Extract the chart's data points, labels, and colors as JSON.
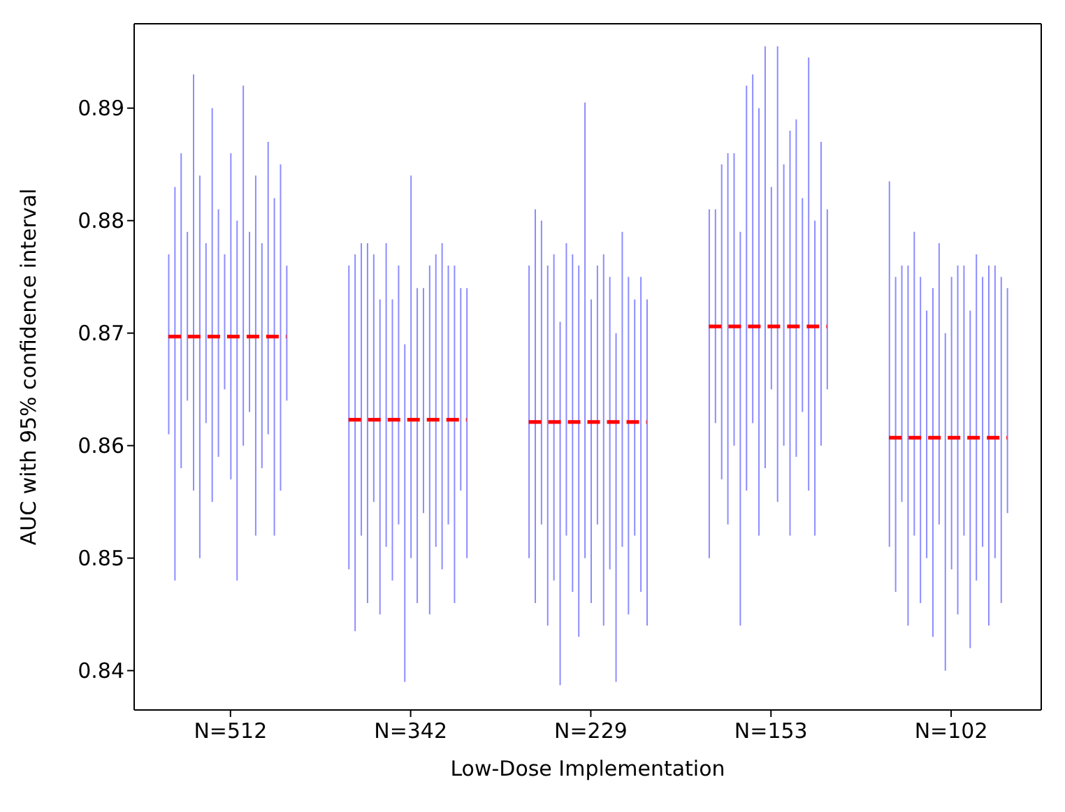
{
  "chart_data": {
    "type": "bar",
    "xlabel": "Low-Dose Implementation",
    "ylabel": "AUC with 95% confidence interval",
    "ylim": [
      0.8365,
      0.8975
    ],
    "yticks": [
      0.84,
      0.85,
      0.86,
      0.87,
      0.88,
      0.89
    ],
    "categories": [
      null,
      null,
      null,
      null,
      null,
      null,
      null,
      null,
      null,
      null,
      null,
      null,
      null,
      null,
      null,
      "N=512",
      null,
      null,
      null,
      null,
      null,
      null,
      null,
      null,
      null,
      null,
      null,
      null,
      null,
      null,
      null,
      null,
      null,
      null,
      null,
      null,
      null,
      null,
      null,
      null,
      null,
      null,
      null,
      null,
      "N=342",
      null,
      null,
      null,
      null,
      null,
      null,
      null,
      null,
      null,
      null,
      null,
      null,
      null,
      null,
      null,
      null,
      null,
      null,
      null,
      null,
      null,
      null,
      null,
      null,
      null,
      null,
      null,
      null,
      "N=229",
      null,
      null,
      null,
      null,
      null,
      null,
      null,
      null,
      null,
      null,
      null,
      null,
      null,
      null,
      null,
      null,
      null,
      null,
      null,
      null,
      null,
      null,
      null,
      null,
      null,
      null,
      null,
      null,
      "N=153",
      null,
      null,
      null,
      null,
      null,
      null,
      null,
      null,
      null,
      null,
      null,
      null,
      null,
      null,
      null,
      null,
      null,
      null,
      null,
      null,
      null,
      null,
      null,
      null,
      null,
      null,
      null,
      null,
      "N=102",
      null,
      null,
      null,
      null,
      null,
      null,
      null,
      null,
      null,
      null,
      null,
      null,
      null,
      null
    ],
    "series": [
      {
        "color": "#8c8cff",
        "base": [
          null,
          null,
          null,
          null,
          null,
          0.861,
          0.848,
          0.858,
          0.864,
          0.856,
          0.85,
          0.862,
          0.855,
          0.859,
          0.865,
          0.857,
          0.848,
          0.86,
          0.863,
          0.852,
          0.858,
          0.861,
          0.852,
          0.856,
          0.864,
          null,
          null,
          null,
          null,
          null,
          null,
          null,
          null,
          null,
          0.849,
          0.8435,
          0.852,
          0.846,
          0.855,
          0.845,
          0.851,
          0.848,
          0.853,
          0.839,
          0.85,
          0.846,
          0.854,
          0.845,
          0.851,
          0.849,
          0.853,
          0.846,
          0.856,
          0.85,
          null,
          null,
          null,
          null,
          null,
          null,
          null,
          null,
          null,
          0.85,
          0.846,
          0.853,
          0.844,
          0.848,
          0.8387,
          0.852,
          0.847,
          0.843,
          0.85,
          0.846,
          0.853,
          0.844,
          0.849,
          0.839,
          0.851,
          0.845,
          0.852,
          0.847,
          0.844,
          null,
          null,
          null,
          null,
          null,
          null,
          null,
          null,
          null,
          0.85,
          0.862,
          0.857,
          0.853,
          0.86,
          0.844,
          0.856,
          0.862,
          0.852,
          0.858,
          0.865,
          0.855,
          0.86,
          0.852,
          0.859,
          0.863,
          0.856,
          0.852,
          0.86,
          0.865,
          null,
          null,
          null,
          null,
          null,
          null,
          null,
          null,
          null,
          0.851,
          0.847,
          0.855,
          0.844,
          0.852,
          0.846,
          0.85,
          0.843,
          0.853,
          0.84,
          0.849,
          0.845,
          0.852,
          0.842,
          0.848,
          0.851,
          0.844,
          0.85,
          0.846,
          0.854,
          null,
          null,
          null,
          null,
          null
        ],
        "values": [
          null,
          null,
          null,
          null,
          null,
          0.016,
          0.035,
          0.028,
          0.015,
          0.037,
          0.034,
          0.016,
          0.035,
          0.022,
          0.012,
          0.029,
          0.032,
          0.032,
          0.016,
          0.032,
          0.02,
          0.026,
          0.03,
          0.029,
          0.012,
          null,
          null,
          null,
          null,
          null,
          null,
          null,
          null,
          null,
          0.027,
          0.0335,
          0.026,
          0.032,
          0.022,
          0.028,
          0.027,
          0.025,
          0.023,
          0.03,
          0.034,
          0.028,
          0.02,
          0.031,
          0.026,
          0.029,
          0.023,
          0.03,
          0.018,
          0.024,
          null,
          null,
          null,
          null,
          null,
          null,
          null,
          null,
          null,
          0.026,
          0.035,
          0.027,
          0.032,
          0.029,
          0.0323,
          0.026,
          0.03,
          0.033,
          0.0405,
          0.027,
          0.023,
          0.033,
          0.026,
          0.031,
          0.028,
          0.03,
          0.021,
          0.028,
          0.029,
          null,
          null,
          null,
          null,
          null,
          null,
          null,
          null,
          null,
          0.031,
          0.019,
          0.028,
          0.033,
          0.026,
          0.035,
          0.036,
          0.031,
          0.038,
          0.0375,
          0.018,
          0.0405,
          0.025,
          0.036,
          0.03,
          0.019,
          0.0385,
          0.028,
          0.027,
          0.016,
          null,
          null,
          null,
          null,
          null,
          null,
          null,
          null,
          null,
          0.0325,
          0.028,
          0.021,
          0.032,
          0.027,
          0.029,
          0.022,
          0.031,
          0.025,
          0.03,
          0.026,
          0.031,
          0.024,
          0.03,
          0.029,
          0.024,
          0.032,
          0.026,
          0.029,
          0.02,
          null,
          null,
          null,
          null,
          null
        ]
      },
      {
        "type": "line",
        "color": "#ff0000",
        "line_style": "dashed",
        "marker": "none",
        "values": [
          null,
          null,
          null,
          null,
          null,
          0.8697,
          0.8697,
          0.8697,
          0.8697,
          0.8697,
          0.8697,
          0.8697,
          0.8697,
          0.8697,
          0.8697,
          0.8697,
          0.8697,
          0.8697,
          0.8697,
          0.8697,
          0.8697,
          0.8697,
          0.8697,
          0.8697,
          0.8697,
          null,
          null,
          null,
          null,
          null,
          null,
          null,
          null,
          null,
          0.8623,
          0.8623,
          0.8623,
          0.8623,
          0.8623,
          0.8623,
          0.8623,
          0.8623,
          0.8623,
          0.8623,
          0.8623,
          0.8623,
          0.8623,
          0.8623,
          0.8623,
          0.8623,
          0.8623,
          0.8623,
          0.8623,
          0.8623,
          null,
          null,
          null,
          null,
          null,
          null,
          null,
          null,
          null,
          0.8621,
          0.8621,
          0.8621,
          0.8621,
          0.8621,
          0.8621,
          0.8621,
          0.8621,
          0.8621,
          0.8621,
          0.8621,
          0.8621,
          0.8621,
          0.8621,
          0.8621,
          0.8621,
          0.8621,
          0.8621,
          0.8621,
          0.8621,
          null,
          null,
          null,
          null,
          null,
          null,
          null,
          null,
          null,
          0.8706,
          0.8706,
          0.8706,
          0.8706,
          0.8706,
          0.8706,
          0.8706,
          0.8706,
          0.8706,
          0.8706,
          0.8706,
          0.8706,
          0.8706,
          0.8706,
          0.8706,
          0.8706,
          0.8706,
          0.8706,
          0.8706,
          0.8706,
          null,
          null,
          null,
          null,
          null,
          null,
          null,
          null,
          null,
          0.8607,
          0.8607,
          0.8607,
          0.8607,
          0.8607,
          0.8607,
          0.8607,
          0.8607,
          0.8607,
          0.8607,
          0.8607,
          0.8607,
          0.8607,
          0.8607,
          0.8607,
          0.8607,
          0.8607,
          0.8607,
          0.8607,
          0.8607,
          null,
          null,
          null,
          null,
          null
        ]
      }
    ]
  }
}
